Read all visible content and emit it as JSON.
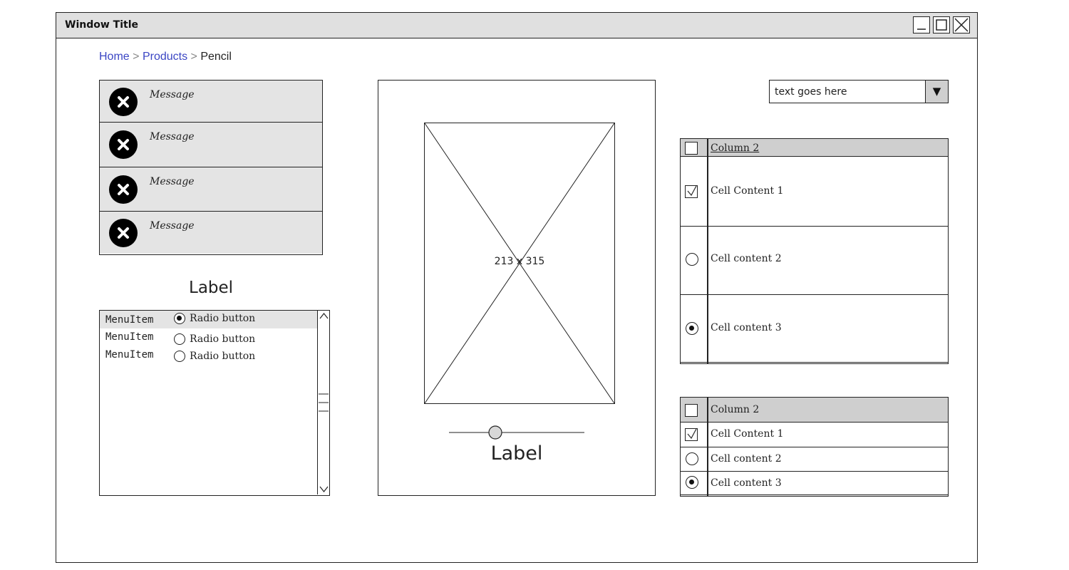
{
  "window": {
    "title": "Window Title",
    "controls": {
      "minimize_icon": "minimize-icon",
      "maximize_icon": "maximize-icon",
      "close_icon": "close-icon"
    }
  },
  "breadcrumb": {
    "items": [
      "Home",
      "Products",
      "Pencil"
    ],
    "separator": ">"
  },
  "messages": {
    "items": [
      {
        "text": "Message",
        "icon": "close-circle-icon"
      },
      {
        "text": "Message",
        "icon": "close-circle-icon"
      },
      {
        "text": "Message",
        "icon": "close-circle-icon"
      },
      {
        "text": "Message",
        "icon": "close-circle-icon"
      }
    ]
  },
  "left_label": "Label",
  "listbox": {
    "rows": [
      {
        "menu": "MenuItem",
        "radio": "Radio button",
        "selected": true
      },
      {
        "menu": "MenuItem",
        "radio": "Radio button",
        "selected": false
      },
      {
        "menu": "MenuItem",
        "radio": "Radio button",
        "selected": false
      }
    ]
  },
  "image_panel": {
    "placeholder_text": "213 x 315",
    "slider_value": 0.34,
    "label": "Label"
  },
  "dropdown": {
    "value": "text goes here",
    "arrow": "▼"
  },
  "table_large": {
    "header": "Column 2",
    "rows": [
      {
        "control": "checkbox",
        "checked": true,
        "text": "Cell Content 1"
      },
      {
        "control": "radio",
        "checked": false,
        "text": "Cell content 2"
      },
      {
        "control": "radio",
        "checked": true,
        "text": "Cell content 3"
      }
    ]
  },
  "table_small": {
    "header": "Column 2",
    "rows": [
      {
        "control": "checkbox",
        "checked": true,
        "text": "Cell Content 1"
      },
      {
        "control": "radio",
        "checked": false,
        "text": "Cell content 2"
      },
      {
        "control": "radio",
        "checked": true,
        "text": "Cell content 3"
      }
    ]
  },
  "colors": {
    "link": "#3b46c4",
    "panel_gray": "#e4e4e4",
    "header_gray": "#cfcfcf",
    "titlebar": "#e0e0e0"
  }
}
